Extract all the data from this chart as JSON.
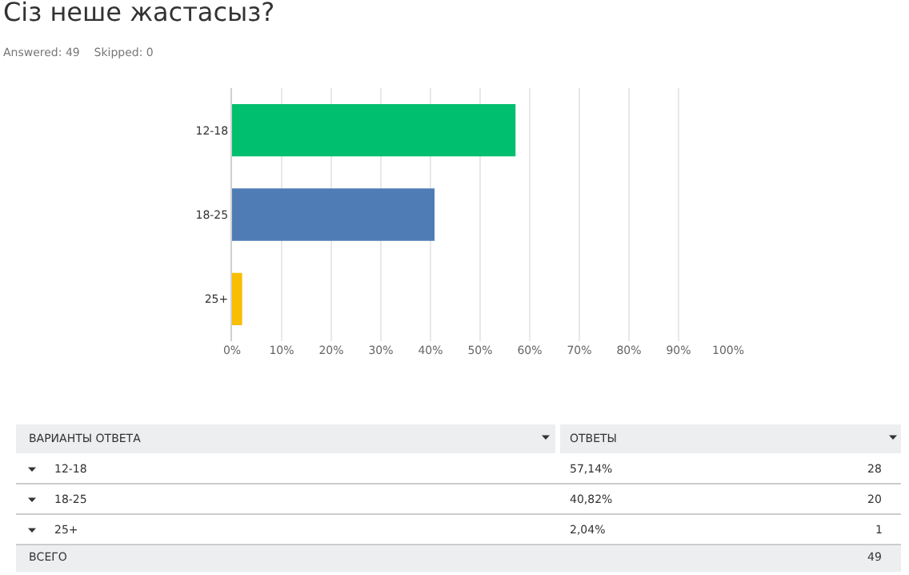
{
  "chart_data": {
    "type": "bar",
    "orientation": "horizontal",
    "title": "Сіз неше жастасыз?",
    "subtitle": "Answered: 49    Skipped: 0",
    "categories": [
      "12-18",
      "18-25",
      "25+"
    ],
    "values": [
      57.14,
      40.82,
      2.04
    ],
    "colors": [
      "#00bf6f",
      "#507cb6",
      "#f9be00"
    ],
    "xlim": [
      0,
      100
    ],
    "xticks": [
      {
        "value": 0,
        "label": "0%"
      },
      {
        "value": 10,
        "label": "10%"
      },
      {
        "value": 20,
        "label": "20%"
      },
      {
        "value": 30,
        "label": "30%"
      },
      {
        "value": 40,
        "label": "40%"
      },
      {
        "value": 50,
        "label": "50%"
      },
      {
        "value": 60,
        "label": "60%"
      },
      {
        "value": 70,
        "label": "70%"
      },
      {
        "value": 80,
        "label": "80%"
      },
      {
        "value": 90,
        "label": "90%"
      },
      {
        "value": 100,
        "label": "100%"
      }
    ],
    "grid": "x",
    "annotations": [
      "ВАРИАНТЫ ОТВЕТА",
      "ОТВЕТЫ",
      "57,14%",
      "40,82%",
      "2,04%",
      "28",
      "20",
      "1",
      "ВСЕГО",
      "49"
    ]
  }
}
